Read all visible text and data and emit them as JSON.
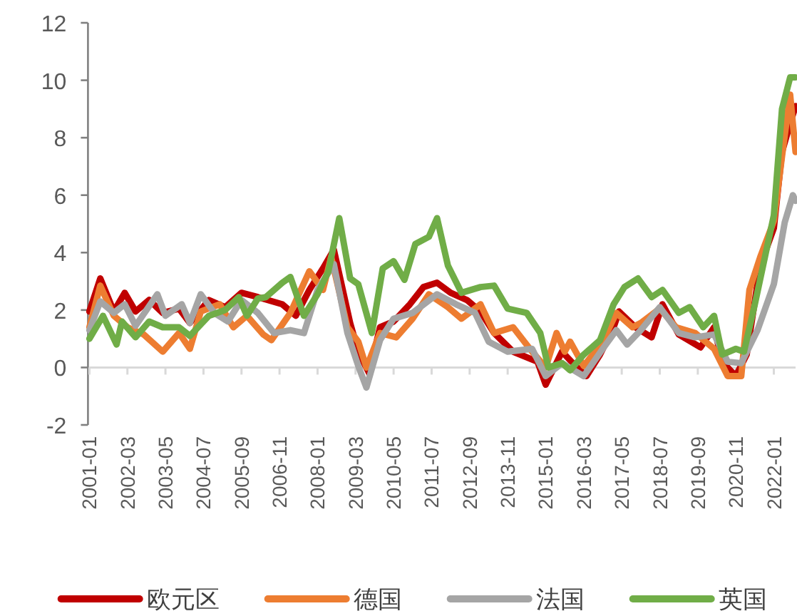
{
  "chart_data": {
    "type": "line",
    "legend": "bottom",
    "ylim": [
      -2,
      12
    ],
    "yticks": [
      -2,
      0,
      2,
      4,
      6,
      8,
      10,
      12
    ],
    "xlim": [
      "2001-01",
      "2022-09"
    ],
    "xticks": [
      "2001-01",
      "2002-03",
      "2003-05",
      "2004-07",
      "2005-09",
      "2006-11",
      "2008-01",
      "2009-03",
      "2010-05",
      "2011-07",
      "2012-09",
      "2013-11",
      "2015-01",
      "2016-03",
      "2017-05",
      "2018-07",
      "2019-09",
      "2020-11",
      "2022-01"
    ],
    "series": [
      {
        "name": "欧元区",
        "color": "#c00000",
        "x": [
          "2001-01",
          "2001-05",
          "2001-10",
          "2002-02",
          "2002-06",
          "2002-11",
          "2003-04",
          "2003-10",
          "2004-02",
          "2004-09",
          "2005-03",
          "2005-09",
          "2006-03",
          "2006-12",
          "2007-05",
          "2007-10",
          "2008-03",
          "2008-07",
          "2009-01",
          "2009-04",
          "2009-08",
          "2009-12",
          "2010-05",
          "2010-11",
          "2011-04",
          "2011-09",
          "2012-02",
          "2012-08",
          "2013-01",
          "2013-06",
          "2014-01",
          "2014-10",
          "2015-01",
          "2015-07",
          "2015-12",
          "2016-04",
          "2016-09",
          "2017-02",
          "2017-04",
          "2017-10",
          "2018-04",
          "2018-08",
          "2019-02",
          "2019-10",
          "2020-03",
          "2020-06",
          "2020-11",
          "2021-03",
          "2021-08",
          "2022-01",
          "2022-04",
          "2022-07",
          "2022-09"
        ],
        "values": [
          1.95,
          3.1,
          1.95,
          2.6,
          1.95,
          2.35,
          1.9,
          2.05,
          1.55,
          2.35,
          2.1,
          2.6,
          2.45,
          2.2,
          1.8,
          2.7,
          3.45,
          4.1,
          1.55,
          0.55,
          -0.2,
          1.4,
          1.6,
          2.2,
          2.8,
          2.95,
          2.6,
          2.35,
          1.95,
          1.2,
          0.55,
          0.2,
          -0.6,
          0.55,
          0.05,
          -0.3,
          0.45,
          1.4,
          1.95,
          1.4,
          1.05,
          2.2,
          1.15,
          0.7,
          1.4,
          0.2,
          -0.3,
          0.45,
          3.55,
          4.85,
          7.5,
          8.5,
          9.1
        ]
      },
      {
        "name": "德国",
        "color": "#ed7d31",
        "x": [
          "2001-01",
          "2001-05",
          "2001-10",
          "2002-03",
          "2002-09",
          "2003-04",
          "2003-10",
          "2004-02",
          "2004-06",
          "2005-01",
          "2005-06",
          "2005-11",
          "2006-05",
          "2006-08",
          "2007-03",
          "2007-10",
          "2008-03",
          "2008-06",
          "2008-12",
          "2009-04",
          "2009-07",
          "2009-12",
          "2010-06",
          "2010-12",
          "2011-06",
          "2012-01",
          "2012-06",
          "2013-01",
          "2013-06",
          "2014-01",
          "2014-08",
          "2015-01",
          "2015-05",
          "2015-08",
          "2015-10",
          "2016-03",
          "2016-10",
          "2017-03",
          "2017-09",
          "2017-12",
          "2018-07",
          "2019-01",
          "2019-08",
          "2020-03",
          "2020-08",
          "2021-01",
          "2021-04",
          "2021-08",
          "2022-01",
          "2022-04",
          "2022-07",
          "2022-09"
        ],
        "values": [
          1.4,
          2.85,
          1.8,
          1.4,
          1.15,
          0.55,
          1.2,
          0.65,
          1.95,
          2.2,
          1.4,
          1.8,
          1.15,
          0.95,
          1.9,
          3.35,
          2.7,
          3.85,
          1.4,
          0.9,
          0.0,
          1.2,
          1.05,
          1.7,
          2.55,
          2.1,
          1.7,
          2.2,
          1.2,
          1.4,
          0.55,
          0.0,
          1.2,
          0.55,
          0.9,
          0.05,
          0.9,
          1.9,
          1.4,
          1.55,
          2.05,
          1.4,
          1.2,
          0.65,
          -0.3,
          -0.3,
          2.7,
          3.85,
          5.1,
          7.35,
          9.5,
          7.5
        ]
      },
      {
        "name": "法国",
        "color": "#a5a5a5",
        "x": [
          "2001-01",
          "2001-05",
          "2001-10",
          "2002-02",
          "2002-06",
          "2003-02",
          "2003-05",
          "2003-11",
          "2004-02",
          "2004-06",
          "2004-11",
          "2005-04",
          "2005-09",
          "2006-03",
          "2006-09",
          "2007-03",
          "2007-08",
          "2008-01",
          "2008-07",
          "2008-12",
          "2009-04",
          "2009-07",
          "2009-12",
          "2010-05",
          "2010-12",
          "2011-09",
          "2012-04",
          "2012-11",
          "2013-04",
          "2013-11",
          "2014-08",
          "2015-01",
          "2015-07",
          "2016-03",
          "2016-10",
          "2017-03",
          "2017-07",
          "2017-12",
          "2018-07",
          "2019-02",
          "2019-08",
          "2020-03",
          "2020-08",
          "2021-01",
          "2021-07",
          "2022-01",
          "2022-05",
          "2022-08",
          "2022-09"
        ],
        "values": [
          1.3,
          2.3,
          1.9,
          2.2,
          1.45,
          2.55,
          1.8,
          2.2,
          1.55,
          2.55,
          1.9,
          1.6,
          2.35,
          1.9,
          1.2,
          1.3,
          1.2,
          2.7,
          3.6,
          1.2,
          0.05,
          -0.7,
          0.95,
          1.7,
          1.9,
          2.55,
          2.2,
          1.9,
          0.9,
          0.55,
          0.65,
          -0.3,
          0.15,
          -0.3,
          0.65,
          1.3,
          0.8,
          1.3,
          2.1,
          1.2,
          1.05,
          1.15,
          0.2,
          0.15,
          1.3,
          2.9,
          5.05,
          6.0,
          5.8
        ]
      },
      {
        "name": "英国",
        "color": "#70ad47",
        "x": [
          "2001-01",
          "2001-06",
          "2001-11",
          "2002-01",
          "2002-06",
          "2002-11",
          "2003-04",
          "2003-10",
          "2004-02",
          "2004-09",
          "2005-03",
          "2005-08",
          "2005-11",
          "2006-03",
          "2006-06",
          "2006-12",
          "2007-03",
          "2007-08",
          "2008-01",
          "2008-05",
          "2008-09",
          "2009-01",
          "2009-04",
          "2009-09",
          "2010-01",
          "2010-05",
          "2010-09",
          "2011-01",
          "2011-06",
          "2011-09",
          "2012-01",
          "2012-06",
          "2013-01",
          "2013-06",
          "2013-11",
          "2014-06",
          "2014-11",
          "2015-02",
          "2015-07",
          "2015-10",
          "2016-03",
          "2016-09",
          "2017-02",
          "2017-06",
          "2017-11",
          "2018-04",
          "2018-08",
          "2019-02",
          "2019-06",
          "2019-11",
          "2020-03",
          "2020-06",
          "2020-11",
          "2021-02",
          "2021-06",
          "2022-01",
          "2022-04",
          "2022-07",
          "2022-09"
        ],
        "values": [
          1.0,
          1.8,
          0.8,
          1.6,
          1.05,
          1.6,
          1.4,
          1.4,
          1.1,
          1.8,
          2.0,
          2.45,
          1.8,
          2.4,
          2.45,
          2.95,
          3.15,
          1.8,
          2.55,
          3.35,
          5.2,
          3.1,
          2.9,
          1.2,
          3.45,
          3.7,
          3.05,
          4.3,
          4.55,
          5.2,
          3.55,
          2.6,
          2.8,
          2.85,
          2.05,
          1.9,
          1.2,
          0.0,
          0.15,
          -0.1,
          0.45,
          0.95,
          2.2,
          2.8,
          3.1,
          2.45,
          2.7,
          1.9,
          2.1,
          1.4,
          1.8,
          0.45,
          0.65,
          0.55,
          2.2,
          5.3,
          9.0,
          10.1,
          10.1
        ]
      }
    ]
  }
}
